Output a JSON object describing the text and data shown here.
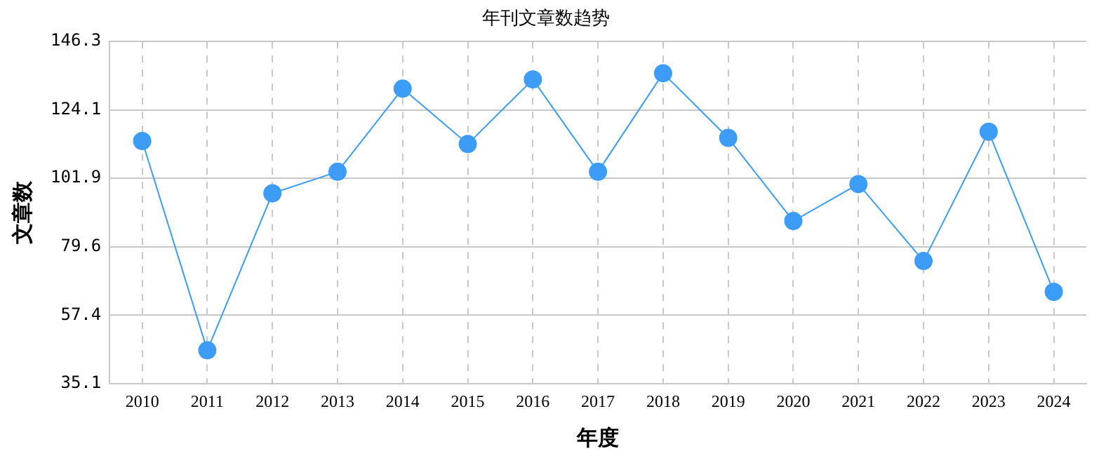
{
  "chart_data": {
    "type": "line",
    "title": "年刊文章数趋势",
    "xlabel": "年度",
    "ylabel": "文章数",
    "categories": [
      "2010",
      "2011",
      "2012",
      "2013",
      "2014",
      "2015",
      "2016",
      "2017",
      "2018",
      "2019",
      "2020",
      "2021",
      "2022",
      "2023",
      "2024"
    ],
    "series": [
      {
        "color": "#3d9cf5",
        "values": [
          114,
          46,
          97,
          104,
          131,
          113,
          134,
          104,
          136,
          115,
          88,
          100,
          75,
          117,
          65
        ]
      }
    ],
    "ylim": [
      35.1,
      146.3
    ],
    "yticks": [
      35.1,
      57.4,
      79.6,
      101.9,
      124.1,
      146.3
    ],
    "grid": true,
    "legend": false,
    "marker": "circle",
    "line_style": "solid"
  }
}
